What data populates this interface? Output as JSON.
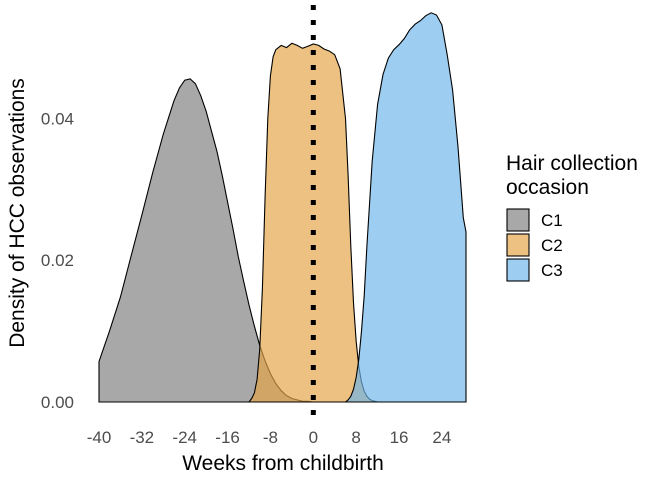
{
  "chart_data": {
    "type": "area",
    "xlabel": "Weeks from childbirth",
    "ylabel": "Density of HCC observations",
    "xlim": [
      -40,
      28.5
    ],
    "ylim": [
      0,
      0.0553
    ],
    "x_ticks": [
      -40,
      -32,
      -24,
      -16,
      -8,
      0,
      8,
      16,
      24
    ],
    "x_tick_labels": [
      "-40",
      "-32",
      "-24",
      "-16",
      "-8",
      "0",
      "8",
      "16",
      "24"
    ],
    "y_ticks": [
      0,
      0.02,
      0.04
    ],
    "y_tick_labels": [
      "0.00",
      "0.02",
      "0.04"
    ],
    "grid": false,
    "legend": {
      "title": "Hair collection occasion",
      "title_lines": [
        "Hair collection",
        "occasion"
      ],
      "position": "right"
    },
    "reference_line": {
      "x": 0,
      "style": "dotted"
    },
    "series": [
      {
        "name": "C1",
        "color": "#7f7f7f",
        "x": [
          -40,
          -38,
          -36,
          -34,
          -32,
          -30,
          -28,
          -26,
          -25,
          -24,
          -23,
          -22,
          -21,
          -20,
          -19,
          -18,
          -17,
          -16,
          -15,
          -14,
          -13,
          -12,
          -11,
          -10,
          -9,
          -8,
          -7,
          -6,
          -5,
          -4,
          -3,
          -2,
          -1,
          0,
          1,
          2
        ],
        "y": [
          0.0057,
          0.0101,
          0.0148,
          0.0206,
          0.0264,
          0.0323,
          0.0378,
          0.0425,
          0.0443,
          0.0454,
          0.0456,
          0.0449,
          0.0432,
          0.041,
          0.0382,
          0.0354,
          0.032,
          0.0282,
          0.0245,
          0.0205,
          0.017,
          0.0137,
          0.0107,
          0.008,
          0.0058,
          0.004,
          0.0026,
          0.0016,
          0.0009,
          0.0005,
          0.0003,
          0.0001,
          0.0001,
          0.0,
          0.0,
          0.0
        ]
      },
      {
        "name": "C2",
        "color": "#e4a446",
        "x": [
          -12,
          -11.5,
          -11,
          -10.5,
          -10,
          -9.5,
          -9,
          -8.5,
          -8,
          -7.5,
          -7,
          -6,
          -5,
          -4,
          -3,
          -2,
          -1,
          0,
          1,
          2,
          3,
          4,
          5,
          6,
          6.5,
          7,
          7.5,
          8,
          8.5,
          9,
          9.5,
          10,
          10.5,
          11,
          11.5,
          12
        ],
        "y": [
          0.0,
          0.0005,
          0.0013,
          0.0032,
          0.0074,
          0.016,
          0.029,
          0.04,
          0.046,
          0.0487,
          0.0497,
          0.0503,
          0.05,
          0.0506,
          0.0503,
          0.0499,
          0.0502,
          0.0505,
          0.0503,
          0.0498,
          0.0495,
          0.049,
          0.047,
          0.04,
          0.032,
          0.022,
          0.014,
          0.0085,
          0.005,
          0.0028,
          0.0015,
          0.0008,
          0.0004,
          0.0002,
          0.0001,
          0.0
        ]
      },
      {
        "name": "C3",
        "color": "#6fb6e9",
        "x": [
          6,
          6.5,
          7,
          7.5,
          8,
          8.5,
          9,
          9.5,
          10,
          11,
          12,
          13,
          14,
          15,
          16,
          17,
          18,
          19,
          20,
          21,
          22,
          23,
          24,
          25,
          26,
          27,
          28,
          28.5
        ],
        "y": [
          0.0,
          0.0003,
          0.0008,
          0.0018,
          0.0035,
          0.006,
          0.01,
          0.015,
          0.022,
          0.034,
          0.042,
          0.0462,
          0.0485,
          0.0497,
          0.0504,
          0.0513,
          0.0525,
          0.0533,
          0.0538,
          0.0545,
          0.0549,
          0.0546,
          0.0532,
          0.049,
          0.044,
          0.036,
          0.026,
          0.024
        ]
      }
    ]
  }
}
